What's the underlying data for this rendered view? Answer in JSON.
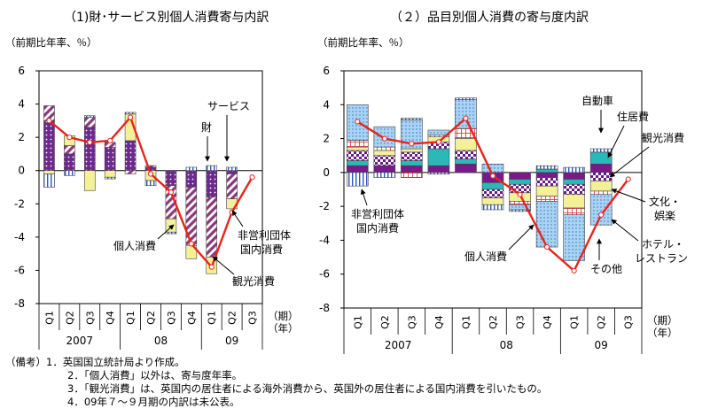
{
  "chart_data": [
    {
      "type": "bar",
      "stacked": true,
      "title": "（1)財･サービス別個人消費寄与内訳",
      "ylabel": "（前期比年率、％）",
      "ylim": [
        -8,
        6
      ],
      "yticks": [
        6,
        4,
        2,
        0,
        -2,
        -4,
        -6,
        -8
      ],
      "grid": false,
      "categories": [
        "Q1",
        "Q2",
        "Q3",
        "Q4",
        "Q1",
        "Q2",
        "Q3",
        "Q4",
        "Q1",
        "Q2",
        "Q3"
      ],
      "year_labels": [
        {
          "label": "2007",
          "start": 0,
          "end": 3
        },
        {
          "label": "08",
          "start": 4,
          "end": 7
        },
        {
          "label": "09",
          "start": 8,
          "end": 10
        }
      ],
      "period_unit": "（期）",
      "year_unit": "（年）",
      "series": [
        {
          "name": "財",
          "color": "#6b2a8c",
          "pattern": "dots-purple",
          "values": [
            3.0,
            1.0,
            2.6,
            1.4,
            1.8,
            0.2,
            -0.9,
            -1.0,
            -1.6,
            -0.2,
            null
          ]
        },
        {
          "name": "サービス",
          "color": "#a0608e",
          "pattern": "hatch-purple",
          "values": [
            0.9,
            0.5,
            0.6,
            0.3,
            -0.2,
            0.1,
            -2.0,
            -3.5,
            -3.6,
            -1.5,
            null
          ]
        },
        {
          "name": "観光消費",
          "color": "#f4f098",
          "pattern": "solid-yellow",
          "values": [
            -0.2,
            0.6,
            -1.2,
            -0.4,
            1.6,
            -0.6,
            -0.8,
            -0.8,
            -1.0,
            -0.6,
            null
          ]
        },
        {
          "name": "非営利団体国内消費",
          "color": "#3a7ad0",
          "pattern": "vlines-blue",
          "values": [
            -0.8,
            -0.3,
            0.1,
            -0.1,
            0.1,
            -0.3,
            -0.1,
            0.2,
            0.3,
            0.2,
            null
          ]
        }
      ],
      "line": {
        "name": "個人消費",
        "color": "#e8241c",
        "values": [
          3.0,
          2.0,
          1.7,
          1.8,
          3.2,
          -0.2,
          -1.3,
          -4.4,
          -5.8,
          -2.5,
          -0.4
        ]
      },
      "annotations": [
        "サービス",
        "財",
        "個人消費",
        "非営利団体国内消費",
        "観光消費"
      ]
    },
    {
      "type": "bar",
      "stacked": true,
      "title": "（２）品目別個人消費の寄与度内訳",
      "ylabel": "（前期比年率、％）",
      "ylim": [
        -8,
        6
      ],
      "yticks": [
        6,
        4,
        2,
        0,
        -2,
        -4,
        -6,
        -8
      ],
      "grid": false,
      "categories": [
        "Q1",
        "Q2",
        "Q3",
        "Q4",
        "Q1",
        "Q2",
        "Q3",
        "Q4",
        "Q1",
        "Q2",
        "Q3"
      ],
      "year_labels": [
        {
          "label": "2007",
          "start": 0,
          "end": 3
        },
        {
          "label": "08",
          "start": 4,
          "end": 7
        },
        {
          "label": "09",
          "start": 8,
          "end": 10
        }
      ],
      "period_unit": "（期）",
      "year_unit": "（年）",
      "series": [
        {
          "name": "自動車",
          "color": "#7a1a8a",
          "pattern": "solid-purple",
          "values": [
            0.4,
            0.4,
            0.4,
            0.4,
            0.5,
            -0.6,
            -0.4,
            -0.3,
            -0.4,
            0.5,
            null
          ]
        },
        {
          "name": "住居費",
          "color": "#2ab8b8",
          "pattern": "solid-teal",
          "values": [
            0.3,
            0.0,
            0.3,
            1.0,
            0.3,
            -0.4,
            -0.3,
            0.2,
            -0.3,
            0.7,
            null
          ]
        },
        {
          "name": "観光消費",
          "color": "#6a1a88",
          "pattern": "checker-purple",
          "values": [
            0.6,
            0.6,
            0.5,
            0.4,
            0.5,
            -0.5,
            -0.5,
            -0.5,
            -0.6,
            -0.5,
            null
          ]
        },
        {
          "name": "文化・娯楽",
          "color": "#f4f098",
          "pattern": "solid-yellow",
          "values": [
            0.2,
            0.3,
            0.2,
            0.3,
            0.7,
            -0.4,
            -0.5,
            -0.6,
            -0.8,
            -0.6,
            null
          ]
        },
        {
          "name": "ホテル・レストラン",
          "color": "#e85a5a",
          "pattern": "grid-red",
          "values": [
            0.4,
            0.2,
            -0.3,
            0.1,
            0.6,
            0.0,
            -0.2,
            -0.3,
            -0.4,
            -0.2,
            null
          ]
        },
        {
          "name": "その他",
          "color": "#8cc4ec",
          "pattern": "dots-blue",
          "values": [
            2.1,
            1.2,
            1.7,
            0.3,
            1.7,
            0.5,
            -0.3,
            -2.7,
            -2.7,
            -1.8,
            null
          ]
        },
        {
          "name": "非営利団体国内消費",
          "color": "#3a7ad0",
          "pattern": "vlines-blue",
          "values": [
            -0.8,
            -0.3,
            0.1,
            -0.1,
            0.1,
            -0.3,
            -0.1,
            0.2,
            0.3,
            0.2,
            null
          ]
        }
      ],
      "line": {
        "name": "個人消費",
        "color": "#e8241c",
        "values": [
          3.0,
          2.0,
          1.7,
          1.8,
          3.2,
          -0.2,
          -1.3,
          -4.4,
          -5.8,
          -2.5,
          -0.4
        ]
      },
      "annotations": [
        "自動車",
        "住居費",
        "観光消費",
        "文化・娯楽",
        "ホテル・レストラン",
        "その他",
        "個人消費",
        "非営利団体国内消費"
      ]
    }
  ],
  "labels": {
    "left": {
      "service": "サービス",
      "goods": "財",
      "consumption": "個人消費",
      "nonprofit_1": "非営利団体",
      "nonprofit_2": "国内消費",
      "tourism": "観光消費"
    },
    "right": {
      "auto": "自動車",
      "housing": "住居費",
      "tourism": "観光消費",
      "culture_1": "文化・",
      "culture_2": "娯楽",
      "hotel_1": "ホテル・",
      "hotel_2": "レストラン",
      "other": "その他",
      "consumption": "個人消費",
      "nonprofit_1": "非営利団体",
      "nonprofit_2": "国内消費"
    }
  },
  "notes": {
    "lead": "（備考）",
    "items": [
      "1．英国国立統計局より作成。",
      "2．「個人消費」以外は、寄与度年率。",
      "3．「観光消費」は、英国内の居住者による海外消費から、英国外の居住者による国内消費を引いたもの。",
      "4．09年７～９月期の内訳は未公表。"
    ]
  }
}
